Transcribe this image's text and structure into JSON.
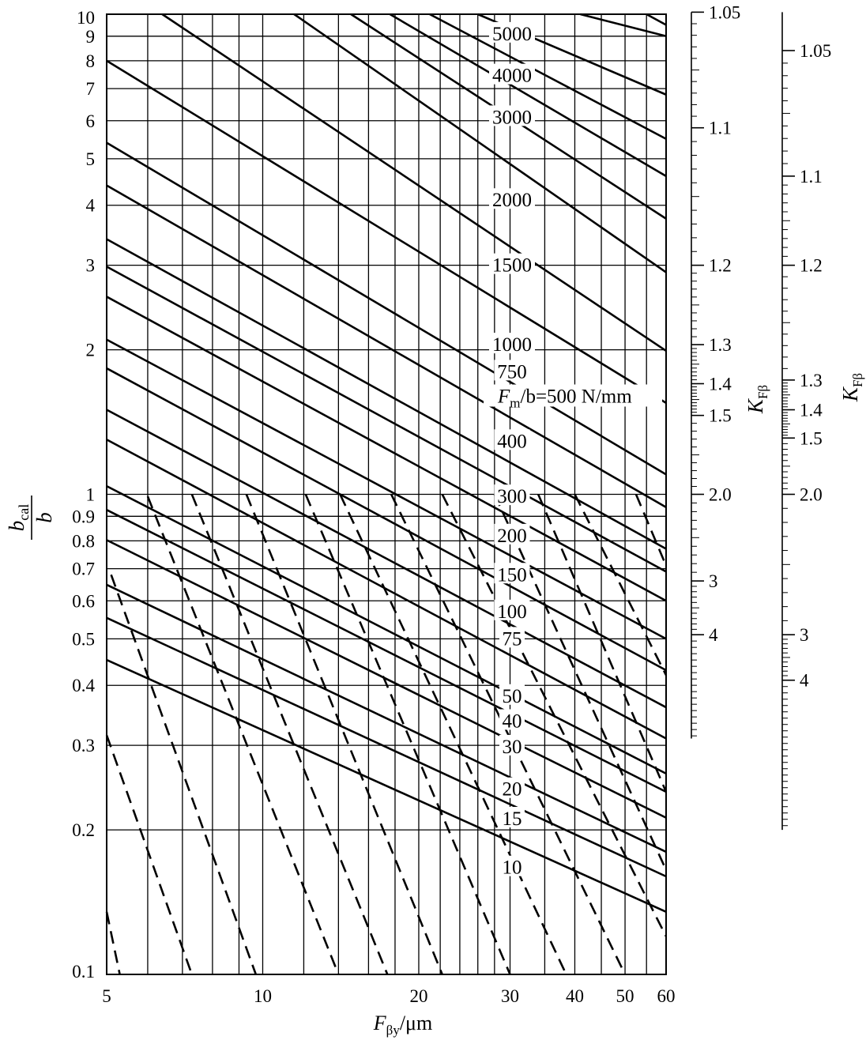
{
  "chart_data": {
    "type": "line",
    "title": "",
    "xlabel": {
      "main": "F",
      "sub": "βy",
      "unit": "/μm"
    },
    "ylabel": {
      "num_main": "b",
      "num_sub": "cal",
      "den": "b"
    },
    "x_scale": "log",
    "y_scale": "log",
    "xlim": [
      5,
      60
    ],
    "ylim": [
      0.1,
      10
    ],
    "x_ticks": [
      5,
      10,
      20,
      30,
      40,
      50,
      60
    ],
    "x_tick_labels": [
      "5",
      "10",
      "20",
      "30",
      "40",
      "50",
      "60"
    ],
    "x_gridlines": [
      5,
      6,
      7,
      8,
      9,
      10,
      12,
      14,
      16,
      18,
      20,
      22,
      24,
      26,
      28,
      30,
      35,
      40,
      45,
      50,
      55,
      60
    ],
    "y_ticks": [
      0.1,
      0.2,
      0.3,
      0.4,
      0.5,
      0.6,
      0.7,
      0.8,
      0.9,
      1,
      2,
      3,
      4,
      5,
      6,
      7,
      8,
      9,
      10
    ],
    "y_tick_labels": [
      "0.1",
      "0.2",
      "0.3",
      "0.4",
      "0.5",
      "0.6",
      "0.7",
      "0.8",
      "0.9",
      "1",
      "2",
      "3",
      "4",
      "5",
      "6",
      "7",
      "8",
      "9",
      "10"
    ],
    "grid": true,
    "series_unit_label": {
      "prefix_main": "F",
      "prefix_sub": "m",
      "text": "/b=500 N/mm"
    },
    "series": [
      {
        "label": "10",
        "points": [
          [
            5,
            0.452
          ],
          [
            60,
            0.135
          ]
        ]
      },
      {
        "label": "15",
        "points": [
          [
            5,
            0.553
          ],
          [
            60,
            0.16
          ]
        ]
      },
      {
        "label": "20",
        "points": [
          [
            5,
            0.648
          ],
          [
            60,
            0.18
          ]
        ]
      },
      {
        "label": "30",
        "points": [
          [
            5,
            0.803
          ],
          [
            60,
            0.212
          ]
        ]
      },
      {
        "label": "40",
        "points": [
          [
            5,
            0.928
          ],
          [
            60,
            0.24
          ]
        ]
      },
      {
        "label": "50",
        "points": [
          [
            5,
            1.04
          ],
          [
            60,
            0.262
          ]
        ]
      },
      {
        "label": "75",
        "points": [
          [
            5,
            1.3
          ],
          [
            60,
            0.31
          ]
        ]
      },
      {
        "label": "100",
        "points": [
          [
            5,
            1.5
          ],
          [
            60,
            0.36
          ]
        ]
      },
      {
        "label": "150",
        "points": [
          [
            5,
            1.83
          ],
          [
            60,
            0.43
          ]
        ]
      },
      {
        "label": "200",
        "points": [
          [
            5,
            2.1
          ],
          [
            60,
            0.5
          ]
        ]
      },
      {
        "label": "300",
        "points": [
          [
            5,
            2.58
          ],
          [
            60,
            0.6
          ]
        ]
      },
      {
        "label": "400",
        "points": [
          [
            5,
            2.98
          ],
          [
            60,
            0.69
          ]
        ]
      },
      {
        "label": "500",
        "points": [
          [
            5,
            3.4
          ],
          [
            60,
            0.77
          ]
        ]
      },
      {
        "label": "750",
        "points": [
          [
            5,
            4.4
          ],
          [
            60,
            0.94
          ]
        ]
      },
      {
        "label": "1000",
        "points": [
          [
            5,
            5.4
          ],
          [
            60,
            1.1
          ]
        ]
      },
      {
        "label": "1500",
        "points": [
          [
            5,
            8.0
          ],
          [
            60,
            1.55
          ]
        ]
      },
      {
        "label": "2000",
        "points": [
          [
            6.4,
            10
          ],
          [
            60,
            1.99
          ]
        ]
      },
      {
        "label": "3000",
        "points": [
          [
            11.5,
            10
          ],
          [
            60,
            2.9
          ]
        ]
      },
      {
        "label": "4000",
        "points": [
          [
            14.8,
            10
          ],
          [
            60,
            3.75
          ]
        ]
      },
      {
        "label": "5000",
        "points": [
          [
            17.6,
            10
          ],
          [
            60,
            4.6
          ]
        ]
      },
      {
        "label": "",
        "points": [
          [
            21,
            10
          ],
          [
            60,
            5.5
          ]
        ]
      },
      {
        "label": "",
        "points": [
          [
            26,
            10
          ],
          [
            60,
            6.8
          ]
        ]
      },
      {
        "label": "",
        "points": [
          [
            41,
            10
          ],
          [
            60,
            9.0
          ]
        ]
      },
      {
        "label": "",
        "points": [
          [
            55,
            10
          ],
          [
            60,
            9.5
          ]
        ]
      }
    ],
    "curve_label_positions_fb": [
      {
        "label": "10",
        "y": 0.167
      },
      {
        "label": "15",
        "y": 0.211
      },
      {
        "label": "20",
        "y": 0.243
      },
      {
        "label": "30",
        "y": 0.298
      },
      {
        "label": "40",
        "y": 0.337
      },
      {
        "label": "50",
        "y": 0.38
      },
      {
        "label": "75",
        "y": 0.5
      },
      {
        "label": "100",
        "y": 0.57
      },
      {
        "label": "150",
        "y": 0.68
      },
      {
        "label": "200",
        "y": 0.82
      },
      {
        "label": "300",
        "y": 0.99
      },
      {
        "label": "400",
        "y": 1.29
      },
      {
        "label": "750",
        "y": 1.8
      },
      {
        "label": "1000",
        "y": 2.05
      },
      {
        "label": "1500",
        "y": 3.0
      },
      {
        "label": "2000",
        "y": 4.1
      },
      {
        "label": "3000",
        "y": 6.1
      },
      {
        "label": "4000",
        "y": 7.45
      },
      {
        "label": "5000",
        "y": 9.1
      }
    ],
    "dashed_lines": [
      [
        [
          5,
          0.135
        ],
        [
          5.3,
          0.1
        ]
      ],
      [
        [
          5,
          0.315
        ],
        [
          7.3,
          0.1
        ]
      ],
      [
        [
          5.1,
          0.68
        ],
        [
          9.7,
          0.1
        ]
      ],
      [
        [
          6,
          0.99
        ],
        [
          14,
          0.1
        ]
      ],
      [
        [
          7.3,
          1.0
        ],
        [
          17.4,
          0.1
        ]
      ],
      [
        [
          9.3,
          1.0
        ],
        [
          22.2,
          0.1
        ]
      ],
      [
        [
          12.1,
          1.0
        ],
        [
          30,
          0.1
        ]
      ],
      [
        [
          14.1,
          1.0
        ],
        [
          38.5,
          0.1
        ]
      ],
      [
        [
          17.7,
          1.0
        ],
        [
          50,
          0.1
        ]
      ],
      [
        [
          22.2,
          1.0
        ],
        [
          60,
          0.12
        ]
      ],
      [
        [
          28,
          1.0
        ],
        [
          60,
          0.165
        ]
      ],
      [
        [
          34,
          1.0
        ],
        [
          60,
          0.24
        ]
      ],
      [
        [
          40,
          1.0
        ],
        [
          60,
          0.42
        ]
      ],
      [
        [
          52.5,
          1.0
        ],
        [
          60,
          0.71
        ]
      ]
    ],
    "secondary_axes": [
      {
        "title_main": "K",
        "title_sub": "Fβ",
        "ticks": [
          1.05,
          1.1,
          1.2,
          1.3,
          1.4,
          1.5,
          2.0,
          3,
          4
        ],
        "tick_labels": [
          "1.05",
          "1.1",
          "1.2",
          "1.3",
          "1.4",
          "1.5",
          "2.0",
          "3",
          "4"
        ],
        "tick_positions_fb": [
          10.1,
          5.8,
          3.0,
          2.05,
          1.7,
          1.46,
          1.0,
          0.66,
          0.51
        ],
        "extent_fb": [
          0.31,
          10.1
        ]
      },
      {
        "title_main": "K",
        "title_sub": "Fβ",
        "ticks": [
          1.05,
          1.1,
          1.2,
          1.3,
          1.4,
          1.5,
          2.0,
          3,
          4
        ],
        "tick_labels": [
          "1.05",
          "1.1",
          "1.2",
          "1.3",
          "1.4",
          "1.5",
          "2.0",
          "3",
          "4"
        ],
        "tick_positions_fb": [
          8.4,
          4.6,
          3.0,
          1.73,
          1.5,
          1.31,
          1.0,
          0.51,
          0.41
        ],
        "extent_fb": [
          0.2,
          10.1
        ]
      }
    ]
  }
}
